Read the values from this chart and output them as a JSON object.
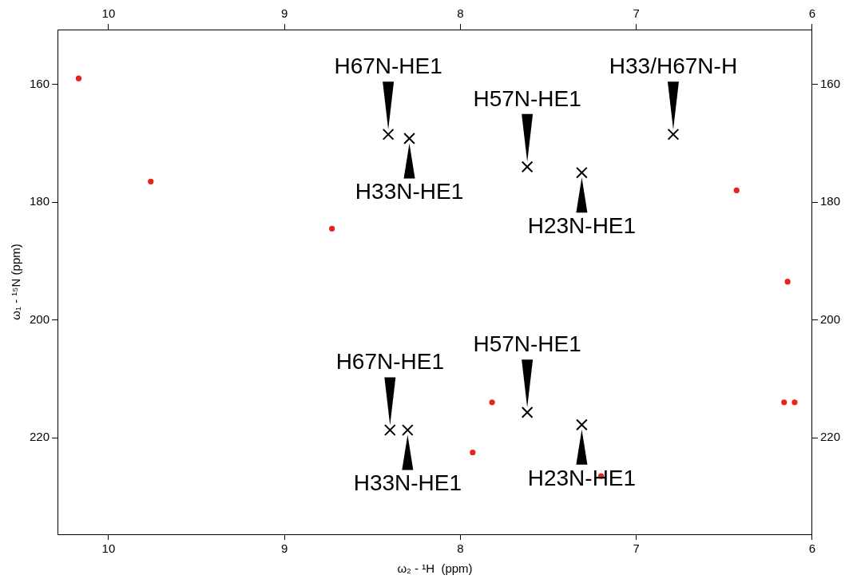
{
  "chart_data": {
    "type": "scatter",
    "xlabel": "ω₂ - ¹H  (ppm)",
    "ylabel": "ω₁ - ¹⁵N (ppm)",
    "xlim": [
      10.29,
      6
    ],
    "xticks": [
      10,
      9,
      8,
      7,
      6
    ],
    "x2lim": [
      10.29,
      6
    ],
    "x2ticks": [
      10,
      9,
      8,
      7,
      6
    ],
    "ylim": [
      236.4,
      150.7
    ],
    "yticks": [
      160,
      180,
      200,
      220
    ],
    "y2lim": [
      236.4,
      150.7
    ],
    "y2ticks": [
      160,
      180,
      200,
      220
    ],
    "grid": false,
    "legend": false,
    "series": [
      {
        "color": "#e8231a",
        "marker": "circle",
        "x": [
          10.17,
          9.76,
          8.73,
          6.43,
          6.14,
          7.93,
          7.82,
          7.2,
          6.16,
          6.1
        ],
        "values": [
          159,
          176.5,
          184.5,
          178,
          193.5,
          222.5,
          214,
          226.5,
          214,
          214
        ]
      },
      {
        "color": "#000000",
        "marker": "cross",
        "x": [
          8.41,
          8.29,
          7.62,
          7.31,
          6.79,
          8.4,
          8.3,
          7.62,
          7.31
        ],
        "values": [
          168.5,
          169.2,
          174,
          175,
          168.5,
          218.7,
          218.7,
          215.7,
          217.8
        ]
      }
    ],
    "annotations": [
      {
        "text": "H67N-HE1",
        "x": 8.41,
        "y": 168.5
      },
      {
        "text": "H33N-HE1",
        "x": 8.29,
        "y": 169.2
      },
      {
        "text": "H57N-HE1",
        "x": 7.62,
        "y": 174
      },
      {
        "text": "H23N-HE1",
        "x": 7.31,
        "y": 175
      },
      {
        "text": "H33/H67N-H",
        "x": 6.79,
        "y": 168.5
      },
      {
        "text": "H67N-HE1",
        "x": 8.4,
        "y": 218.7
      },
      {
        "text": "H33N-HE1",
        "x": 8.3,
        "y": 218.7
      },
      {
        "text": "H57N-HE1",
        "x": 7.62,
        "y": 215.7
      },
      {
        "text": "H23N-HE1",
        "x": 7.31,
        "y": 217.8
      }
    ]
  }
}
